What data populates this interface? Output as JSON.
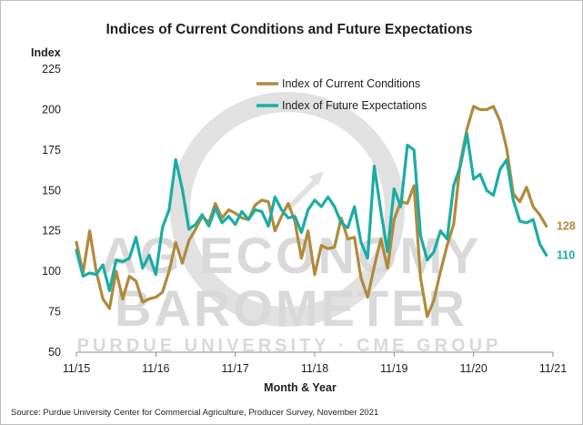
{
  "chart_data": {
    "type": "line",
    "title": "Indices of Current Conditions and Future Expectations",
    "ylabel": "Index",
    "xlabel": "Month & Year",
    "ylim": [
      50,
      225
    ],
    "yticks": [
      50,
      75,
      100,
      125,
      150,
      175,
      200,
      225
    ],
    "xlim": [
      0,
      72
    ],
    "xticks": [
      {
        "label": "11/15",
        "x": 0
      },
      {
        "label": "11/16",
        "x": 12
      },
      {
        "label": "11/17",
        "x": 24
      },
      {
        "label": "11/18",
        "x": 36
      },
      {
        "label": "11/19",
        "x": 48
      },
      {
        "label": "11/20",
        "x": 60
      },
      {
        "label": "11/21",
        "x": 72
      }
    ],
    "legend_position": "top-center",
    "series": [
      {
        "name": "Index of Current Conditions",
        "color": "#b08a3c",
        "end_label": "128",
        "values": [
          118,
          99,
          125,
          100,
          83,
          77,
          100,
          83,
          97,
          94,
          81,
          83,
          84,
          87,
          100,
          118,
          105,
          119,
          126,
          134,
          130,
          142,
          133,
          138,
          136,
          133,
          132,
          141,
          144,
          143,
          125,
          134,
          142,
          131,
          108,
          125,
          98,
          116,
          114,
          115,
          133,
          120,
          121,
          96,
          84,
          103,
          120,
          102,
          132,
          143,
          142,
          153,
          96,
          72,
          82,
          100,
          116,
          129,
          167,
          188,
          202,
          200,
          200,
          202,
          193,
          176,
          148,
          143,
          152,
          140,
          135,
          128
        ]
      },
      {
        "name": "Index of Future Expectations",
        "color": "#1aada4",
        "end_label": "110",
        "values": [
          113,
          97,
          99,
          98,
          104,
          88,
          107,
          106,
          108,
          121,
          102,
          110,
          98,
          127,
          138,
          169,
          151,
          126,
          129,
          135,
          128,
          139,
          130,
          134,
          129,
          137,
          132,
          138,
          137,
          128,
          146,
          138,
          133,
          134,
          124,
          138,
          144,
          140,
          146,
          140,
          130,
          127,
          140,
          118,
          108,
          165,
          137,
          112,
          151,
          140,
          178,
          175,
          122,
          107,
          112,
          125,
          120,
          153,
          165,
          185,
          157,
          160,
          150,
          147,
          163,
          169,
          144,
          131,
          130,
          132,
          117,
          110
        ]
      }
    ],
    "watermark": {
      "line1": "AG ECONOMY",
      "line2": "BAROMETER",
      "line3": "PURDUE UNIVERSITY · CME GROUP"
    },
    "source": "Source: Purdue University Center for Commercial Agriculture, Producer Survey, November 2021"
  }
}
